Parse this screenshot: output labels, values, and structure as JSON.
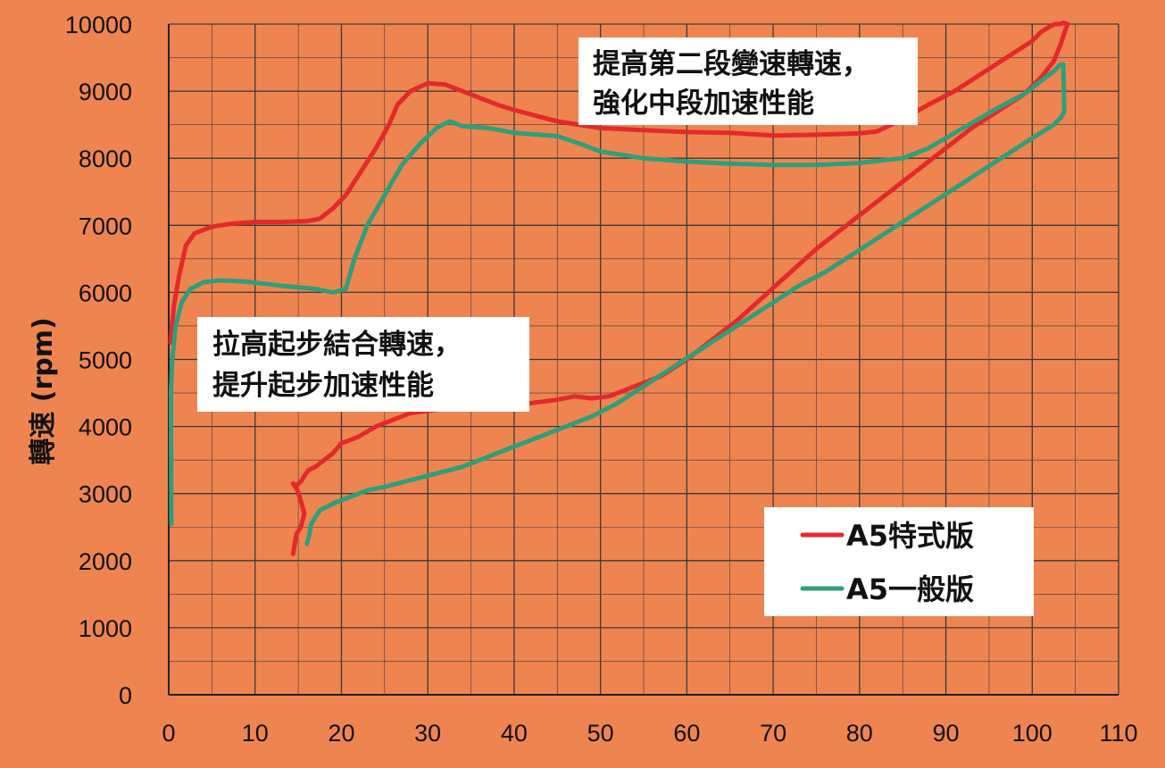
{
  "colors": {
    "background": "#EE8550",
    "gridline": "#3a3a3a",
    "series_a5_special": "#E3292B",
    "series_a5_standard": "#2F9E7A",
    "annotation_bg": "#FFFFFF"
  },
  "chart_data": {
    "type": "line",
    "title": "",
    "xlabel": "",
    "ylabel": "轉速 (rpm)",
    "xlim": [
      0,
      110
    ],
    "ylim": [
      0,
      10000
    ],
    "x_ticks": [
      "0",
      "10",
      "20",
      "30",
      "40",
      "50",
      "60",
      "70",
      "80",
      "90",
      "100",
      "110"
    ],
    "y_ticks": [
      "0",
      "1000",
      "2000",
      "3000",
      "4000",
      "5000",
      "6000",
      "7000",
      "8000",
      "9000",
      "10000"
    ],
    "grid": true,
    "legend_position": "bottom-right",
    "series": [
      {
        "name": "A5特式版",
        "color": "#E3292B",
        "x": [
          0.2,
          0.6,
          1.2,
          2,
          3,
          5,
          7,
          10,
          13,
          16,
          17.5,
          19,
          20.5,
          22,
          24,
          25.5,
          26.5,
          28,
          30,
          32,
          34,
          36,
          38,
          40,
          45,
          50,
          55,
          60,
          65,
          70,
          75,
          80,
          82,
          85,
          88,
          91,
          94,
          97,
          100,
          101,
          102,
          102.6,
          103.2,
          103.6,
          104.1,
          103.8,
          103.3,
          102.5,
          101,
          99,
          96,
          93,
          90,
          87,
          84,
          81,
          78,
          75,
          72,
          69,
          66,
          63,
          60,
          57,
          54,
          51,
          49,
          47,
          45,
          42,
          39,
          35,
          31,
          28,
          26,
          24,
          22,
          20,
          19,
          18,
          17,
          16.2,
          15.9,
          15.3,
          14.8,
          14.4,
          14.9,
          15.4,
          15.7,
          15.3,
          14.8,
          14.6,
          14.4
        ],
        "y": [
          5250,
          5800,
          6250,
          6700,
          6880,
          6980,
          7020,
          7050,
          7050,
          7060,
          7100,
          7250,
          7450,
          7750,
          8150,
          8500,
          8800,
          9000,
          9120,
          9100,
          9000,
          8900,
          8800,
          8720,
          8550,
          8450,
          8420,
          8390,
          8380,
          8340,
          8350,
          8370,
          8400,
          8580,
          8800,
          9000,
          9250,
          9500,
          9750,
          9880,
          9960,
          10000,
          10000,
          10020,
          10000,
          9900,
          9700,
          9450,
          9200,
          8950,
          8700,
          8450,
          8150,
          7850,
          7550,
          7250,
          6950,
          6650,
          6300,
          5950,
          5600,
          5300,
          5000,
          4750,
          4600,
          4450,
          4420,
          4450,
          4400,
          4350,
          4300,
          4300,
          4250,
          4200,
          4100,
          4000,
          3850,
          3750,
          3600,
          3500,
          3400,
          3350,
          3300,
          3180,
          3120,
          3150,
          3050,
          2850,
          2700,
          2500,
          2400,
          2250,
          2100
        ]
      },
      {
        "name": "A5一般版",
        "color": "#2F9E7A",
        "x": [
          0.3,
          0.25,
          0.4,
          0.8,
          1.5,
          2.5,
          4,
          6,
          9,
          13,
          17,
          19,
          20.5,
          21.5,
          23,
          25,
          27,
          29,
          31,
          32.5,
          34,
          37,
          40,
          45,
          48,
          50,
          52,
          55,
          60,
          65,
          70,
          75,
          80,
          85,
          88,
          92,
          96,
          99,
          101,
          102.5,
          103.3,
          103.6,
          103.7,
          103.4,
          102.5,
          100,
          97,
          94,
          91,
          88,
          85,
          82,
          79,
          76,
          73,
          70,
          67,
          64,
          61,
          58,
          55,
          52,
          49,
          46,
          43,
          40,
          37,
          34,
          31,
          28,
          25,
          23,
          21,
          19,
          17.5,
          17,
          16.5,
          16.3,
          16
        ],
        "y": [
          2550,
          4500,
          5000,
          5500,
          5850,
          6050,
          6150,
          6180,
          6160,
          6100,
          6050,
          6000,
          6050,
          6500,
          7000,
          7450,
          7900,
          8200,
          8450,
          8550,
          8480,
          8450,
          8380,
          8330,
          8200,
          8100,
          8060,
          8000,
          7950,
          7920,
          7900,
          7900,
          7930,
          8000,
          8150,
          8450,
          8750,
          8950,
          9150,
          9300,
          9400,
          9400,
          8700,
          8620,
          8500,
          8300,
          8050,
          7800,
          7550,
          7300,
          7050,
          6800,
          6550,
          6300,
          6100,
          5850,
          5600,
          5350,
          5100,
          4850,
          4600,
          4350,
          4150,
          4000,
          3850,
          3700,
          3550,
          3400,
          3300,
          3200,
          3100,
          3050,
          2950,
          2850,
          2750,
          2650,
          2550,
          2400,
          2250
        ]
      }
    ],
    "annotations": [
      {
        "lines": [
          "提高第二段變速轉速，",
          "強化中段加速性能"
        ]
      },
      {
        "lines": [
          "拉高起步結合轉速，",
          "提升起步加速性能"
        ]
      }
    ]
  }
}
